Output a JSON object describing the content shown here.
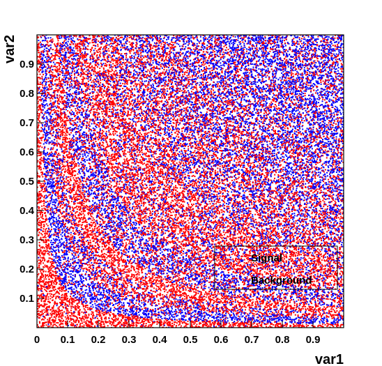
{
  "chart_data": {
    "type": "scatter",
    "title": "",
    "xlabel": "var1",
    "ylabel": "var2",
    "xlim": [
      0,
      1
    ],
    "ylim": [
      0,
      1
    ],
    "xticks": [
      "0",
      "0.1",
      "0.2",
      "0.3",
      "0.4",
      "0.5",
      "0.6",
      "0.7",
      "0.8",
      "0.9"
    ],
    "yticks": [
      "0.1",
      "0.2",
      "0.3",
      "0.4",
      "0.5",
      "0.6",
      "0.7",
      "0.8",
      "0.9"
    ],
    "legend_position": "bottom-right",
    "series": [
      {
        "name": "Signal",
        "color": "#ff0000",
        "description_points": "dense fill, concentrated where var1*var2 is moderate and near axes",
        "sample_points": [
          [
            0.01,
            0.2
          ],
          [
            0.02,
            0.5
          ],
          [
            0.03,
            0.8
          ],
          [
            0.2,
            0.02
          ],
          [
            0.5,
            0.02
          ],
          [
            0.8,
            0.01
          ],
          [
            0.3,
            0.5
          ],
          [
            0.4,
            0.4
          ],
          [
            0.5,
            0.3
          ],
          [
            0.35,
            0.6
          ],
          [
            0.6,
            0.35
          ],
          [
            0.45,
            0.45
          ],
          [
            0.25,
            0.7
          ],
          [
            0.7,
            0.25
          ],
          [
            0.15,
            0.9
          ],
          [
            0.9,
            0.15
          ]
        ]
      },
      {
        "name": "Background",
        "color": "#0000ff",
        "description_points": "hyperbolic bands var1*var2 ~ const, plus upper-right region",
        "sample_points": [
          [
            0.05,
            0.6
          ],
          [
            0.1,
            0.3
          ],
          [
            0.2,
            0.15
          ],
          [
            0.4,
            0.08
          ],
          [
            0.6,
            0.06
          ],
          [
            0.9,
            0.04
          ],
          [
            0.15,
            0.7
          ],
          [
            0.3,
            0.35
          ],
          [
            0.5,
            0.21
          ],
          [
            0.7,
            0.15
          ],
          [
            0.7,
            0.7
          ],
          [
            0.8,
            0.8
          ],
          [
            0.6,
            0.8
          ],
          [
            0.85,
            0.6
          ],
          [
            0.9,
            0.9
          ]
        ]
      }
    ]
  }
}
